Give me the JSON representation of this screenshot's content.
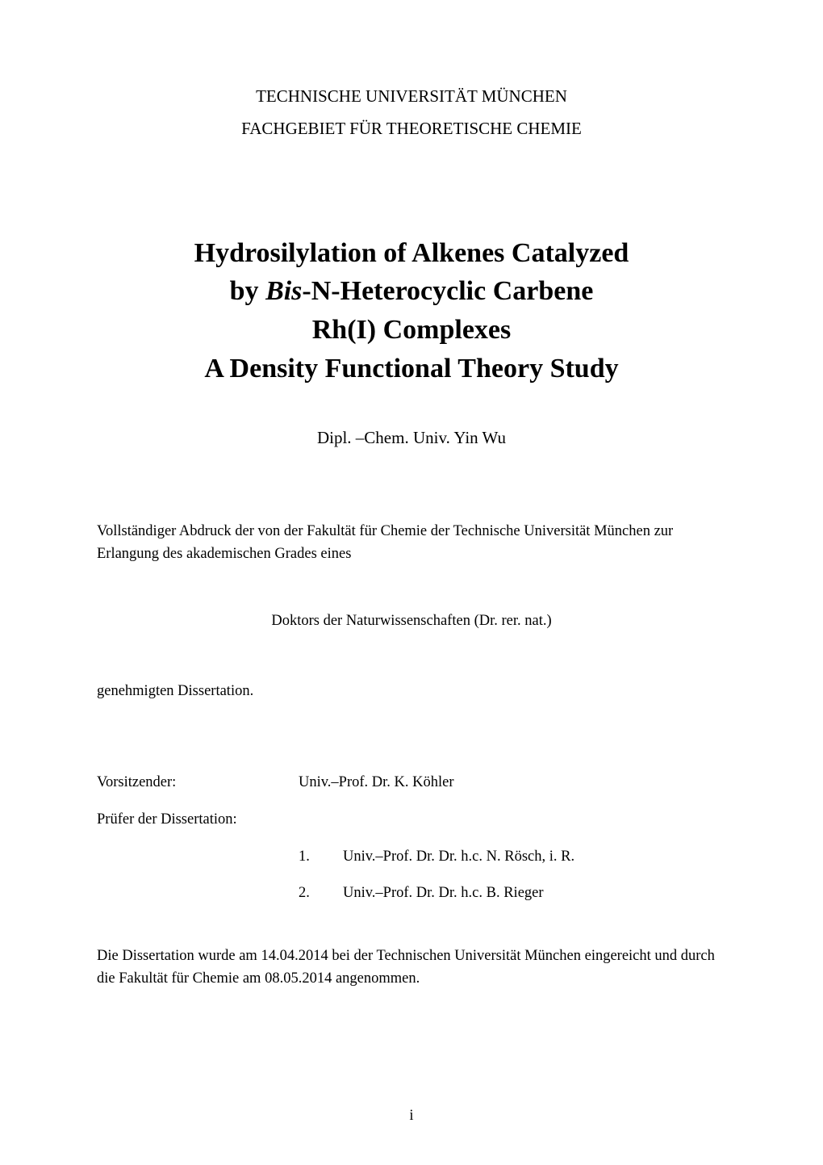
{
  "header": {
    "line1": "TECHNISCHE UNIVERSITÄT MÜNCHEN",
    "line2": "FACHGEBIET FÜR THEORETISCHE CHEMIE"
  },
  "title": {
    "line1": "Hydrosilylation of Alkenes Catalyzed",
    "line2_prefix": "by ",
    "line2_italic": "Bis",
    "line2_suffix": "-N-Heterocyclic Carbene",
    "line3": "Rh(I) Complexes",
    "line4": "A Density Functional Theory Study"
  },
  "author": "Dipl. –Chem. Univ. Yin Wu",
  "abstract_text": "Vollständiger Abdruck der von der Fakultät für Chemie der Technische Universität München zur Erlangung des akademischen Grades eines",
  "degree_text": "Doktors der Naturwissenschaften (Dr. rer. nat.)",
  "approved_text": "genehmigten Dissertation.",
  "committee": {
    "chair_label": "Vorsitzender:",
    "chair_name": "Univ.–Prof. Dr. K. Köhler",
    "examiners_label": "Prüfer der Dissertation:",
    "examiners": [
      {
        "num": "1.",
        "name": "Univ.–Prof. Dr. Dr. h.c. N. Rösch, i. R."
      },
      {
        "num": "2.",
        "name": "Univ.–Prof. Dr. Dr. h.c. B. Rieger"
      }
    ]
  },
  "footer_text": "Die Dissertation wurde am 14.04.2014 bei der Technischen Universität München eingereicht und durch die Fakultät für Chemie am 08.05.2014 angenommen.",
  "page_number": "i",
  "colors": {
    "background": "#ffffff",
    "text": "#000000"
  },
  "typography": {
    "font_family": "Times New Roman",
    "header_fontsize": 21,
    "title_fontsize": 34,
    "title_weight": "bold",
    "author_fontsize": 21,
    "body_fontsize": 18.5
  }
}
